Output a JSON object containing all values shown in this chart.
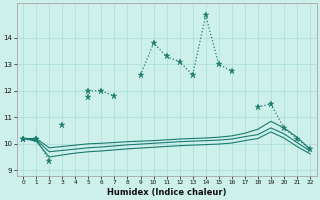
{
  "xlabel": "Humidex (Indice chaleur)",
  "x": [
    0,
    1,
    2,
    3,
    4,
    5,
    6,
    7,
    8,
    9,
    10,
    11,
    12,
    13,
    14,
    15,
    16,
    17,
    18,
    19,
    20,
    21,
    22
  ],
  "line_main": [
    10.2,
    10.2,
    null,
    10.7,
    null,
    12.0,
    12.0,
    11.8,
    null,
    12.6,
    13.8,
    13.3,
    13.1,
    12.6,
    14.85,
    13.0,
    12.75,
    null,
    11.4,
    11.5,
    10.6,
    10.2,
    9.8
  ],
  "line_short": [
    10.2,
    10.2,
    9.35,
    null,
    null,
    11.75,
    null,
    null,
    null,
    null,
    null,
    null,
    null,
    null,
    null,
    null,
    null,
    null,
    null,
    null,
    null,
    null,
    null
  ],
  "line_upper": [
    10.2,
    10.2,
    9.85,
    9.9,
    9.95,
    10.0,
    10.02,
    10.05,
    10.08,
    10.1,
    10.12,
    10.15,
    10.18,
    10.2,
    10.22,
    10.25,
    10.3,
    10.4,
    10.55,
    10.85,
    10.6,
    10.25,
    9.8
  ],
  "line_mid": [
    10.2,
    10.15,
    9.7,
    9.75,
    9.8,
    9.85,
    9.88,
    9.92,
    9.96,
    9.99,
    10.02,
    10.05,
    10.08,
    10.1,
    10.12,
    10.14,
    10.18,
    10.27,
    10.35,
    10.6,
    10.38,
    10.05,
    9.73
  ],
  "line_lower": [
    10.2,
    10.1,
    9.5,
    9.58,
    9.65,
    9.7,
    9.73,
    9.77,
    9.81,
    9.84,
    9.87,
    9.9,
    9.93,
    9.95,
    9.97,
    9.99,
    10.03,
    10.12,
    10.2,
    10.45,
    10.22,
    9.9,
    9.62
  ],
  "color": "#1a7a6e",
  "bg_color": "#cef0eb",
  "grid_color": "#aaddd7",
  "ylim": [
    8.8,
    15.3
  ],
  "yticks": [
    9,
    10,
    11,
    12,
    13,
    14
  ],
  "xlim": [
    -0.5,
    22.5
  ]
}
